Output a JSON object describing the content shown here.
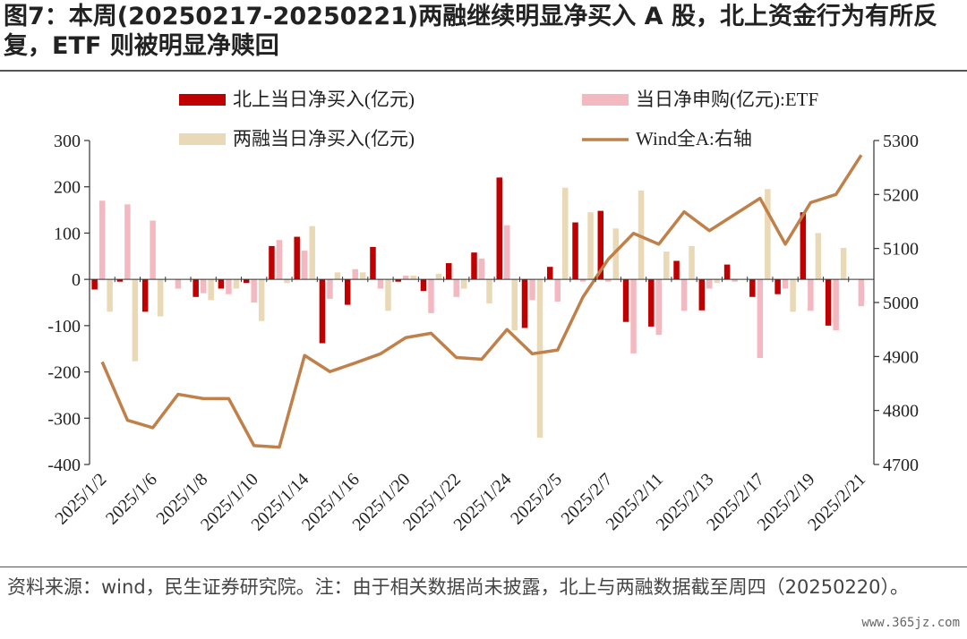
{
  "header": {
    "title": "图7：本周(20250217-20250221)两融继续明显净买入 A 股，北上资金行为有所反复，ETF 则被明显净赎回"
  },
  "footer": {
    "source": "资料来源：wind，民生证券研究院。注：由于相关数据尚未披露，北上与两融数据截至周四（20250220）。",
    "watermark": "www.365jz.com"
  },
  "chart_data": {
    "type": "bar",
    "title": "",
    "xlabel": "",
    "ylabel": "",
    "y_left": {
      "min": -400,
      "max": 300,
      "ticks": [
        300,
        200,
        100,
        0,
        -100,
        -200,
        -300,
        -400
      ]
    },
    "y_right": {
      "min": 4700,
      "max": 5300,
      "ticks": [
        5300,
        5200,
        5100,
        5000,
        4900,
        4800,
        4700
      ]
    },
    "legend_position": "top",
    "grid": false,
    "categories": [
      "2025/1/2",
      "2025/1/3",
      "2025/1/6",
      "2025/1/7",
      "2025/1/8",
      "2025/1/9",
      "2025/1/10",
      "2025/1/13",
      "2025/1/14",
      "2025/1/15",
      "2025/1/16",
      "2025/1/17",
      "2025/1/20",
      "2025/1/21",
      "2025/1/22",
      "2025/1/23",
      "2025/1/24",
      "2025/1/27",
      "2025/2/5",
      "2025/2/6",
      "2025/2/7",
      "2025/2/10",
      "2025/2/11",
      "2025/2/12",
      "2025/2/13",
      "2025/2/14",
      "2025/2/17",
      "2025/2/18",
      "2025/2/19",
      "2025/2/20",
      "2025/2/21"
    ],
    "tick_labels": [
      "2025/1/2",
      "2025/1/6",
      "2025/1/8",
      "2025/1/10",
      "2025/1/14",
      "2025/1/16",
      "2025/1/20",
      "2025/1/22",
      "2025/1/24",
      "2025/2/5",
      "2025/2/7",
      "2025/2/11",
      "2025/2/13",
      "2025/2/17",
      "2025/2/19",
      "2025/2/21"
    ],
    "series": [
      {
        "name": "北上当日净买入(亿元)",
        "type": "bar",
        "axis": "left",
        "color": "#C00000",
        "values": [
          -22,
          -5,
          -70,
          0,
          -38,
          -20,
          -8,
          72,
          92,
          -138,
          -55,
          70,
          -5,
          -25,
          35,
          58,
          220,
          -105,
          27,
          123,
          148,
          -92,
          -102,
          40,
          -67,
          32,
          -38,
          -32,
          145,
          -100,
          null
        ]
      },
      {
        "name": "当日净申购(亿元):ETF",
        "type": "bar",
        "axis": "left",
        "color": "#F4B9C0",
        "values": [
          170,
          162,
          127,
          -20,
          -30,
          -32,
          -50,
          85,
          62,
          -42,
          22,
          -20,
          8,
          -73,
          -38,
          45,
          117,
          -45,
          -48,
          -5,
          -5,
          -160,
          -120,
          -68,
          -20,
          -5,
          -170,
          -20,
          -68,
          -110,
          -58
        ]
      },
      {
        "name": "两融当日净买入(亿元)",
        "type": "bar",
        "axis": "left",
        "color": "#EAD9B6",
        "values": [
          -70,
          -177,
          -80,
          0,
          -45,
          -20,
          -90,
          -8,
          115,
          15,
          15,
          -68,
          8,
          12,
          -20,
          -52,
          -110,
          -342,
          198,
          145,
          110,
          192,
          60,
          72,
          -8,
          0,
          195,
          -70,
          100,
          68,
          null
        ]
      },
      {
        "name": "Wind全A:右轴",
        "type": "line",
        "axis": "right",
        "color": "#C0804A",
        "values": [
          4890,
          4782,
          4768,
          4830,
          4822,
          4822,
          4735,
          4732,
          4902,
          4872,
          4888,
          4905,
          4935,
          4943,
          4898,
          4895,
          4950,
          4905,
          4912,
          5010,
          5080,
          5128,
          5108,
          5168,
          5133,
          5163,
          5193,
          5108,
          5185,
          5200,
          5273
        ]
      }
    ]
  }
}
